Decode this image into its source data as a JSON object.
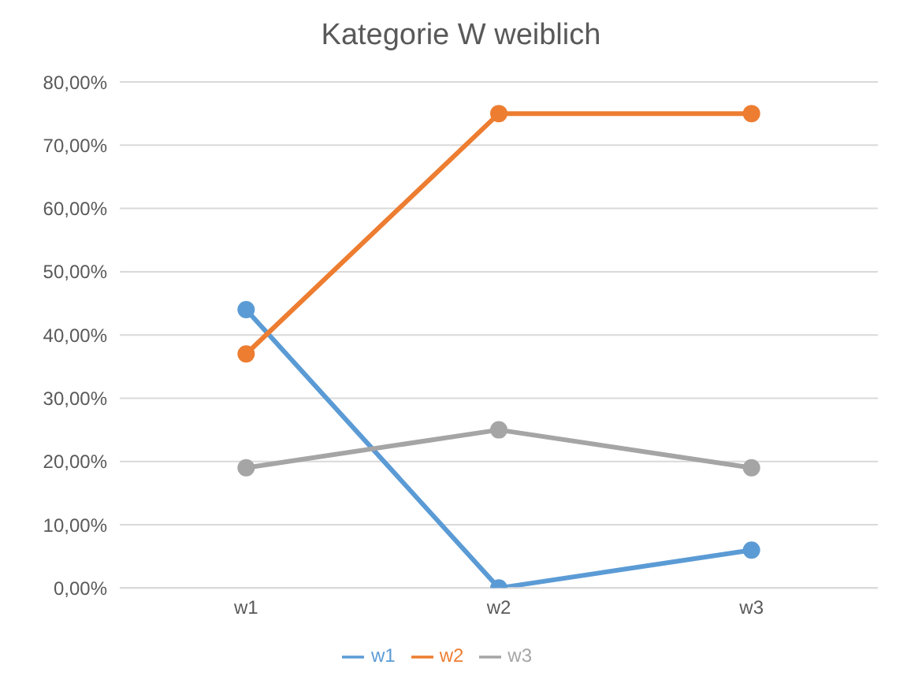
{
  "chart_data": {
    "type": "line",
    "title": "Kategorie W weiblich",
    "categories": [
      "w1",
      "w2",
      "w3"
    ],
    "series": [
      {
        "name": "w1",
        "color": "#5b9bd5",
        "values": [
          44,
          0,
          6
        ]
      },
      {
        "name": "w2",
        "color": "#ed7d31",
        "values": [
          37,
          75,
          75
        ]
      },
      {
        "name": "w3",
        "color": "#a5a5a5",
        "values": [
          19,
          25,
          19
        ]
      }
    ],
    "ylim": [
      0,
      80
    ],
    "yticks": [
      {
        "value": 0,
        "label": "0,00%"
      },
      {
        "value": 10,
        "label": "10,00%"
      },
      {
        "value": 20,
        "label": "20,00%"
      },
      {
        "value": 30,
        "label": "30,00%"
      },
      {
        "value": 40,
        "label": "40,00%"
      },
      {
        "value": 50,
        "label": "50,00%"
      },
      {
        "value": 60,
        "label": "60,00%"
      },
      {
        "value": 70,
        "label": "70,00%"
      },
      {
        "value": 80,
        "label": "80,00%"
      }
    ],
    "grid": "y",
    "legend": "bottom",
    "marker": "circle",
    "line_style": "solid"
  }
}
